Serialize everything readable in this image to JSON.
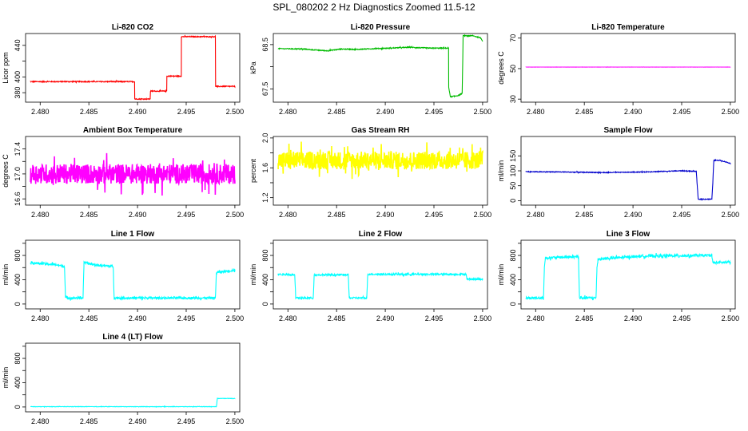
{
  "figure": {
    "title": "SPL_080202  2 Hz Diagnostics Zoomed 11.5-12"
  },
  "chart_data": [
    {
      "type": "line",
      "title": "Li-820 CO2",
      "ylabel": "Licor ppm",
      "color": "#ff0000",
      "xlim": [
        2.4785,
        2.5005
      ],
      "ylim": [
        368,
        455
      ],
      "xticks": [
        "2.480",
        "2.485",
        "2.490",
        "2.495",
        "2.500"
      ],
      "yticks": [
        380,
        400,
        420,
        440
      ],
      "ytick_labels": [
        "380",
        "400",
        "",
        "440"
      ],
      "noise": 0.6,
      "series": [
        {
          "x": [
            2.479,
            2.4897,
            2.4897,
            2.4913,
            2.4913,
            2.493,
            2.493,
            2.4945,
            2.4945,
            2.498,
            2.498,
            2.5
          ],
          "y": [
            394,
            394,
            372,
            372,
            382,
            382,
            401,
            401,
            451,
            451,
            388,
            388
          ]
        }
      ]
    },
    {
      "type": "line",
      "title": "Li-820 Pressure",
      "ylabel": "kPa",
      "color": "#00bb00",
      "xlim": [
        2.4785,
        2.5005
      ],
      "ylim": [
        67.2,
        68.75
      ],
      "xticks": [
        "2.480",
        "2.485",
        "2.490",
        "2.495",
        "2.500"
      ],
      "yticks": [
        67.5,
        68.0,
        68.5
      ],
      "ytick_labels": [
        "67.5",
        "",
        "68.5"
      ],
      "noise": 0.01,
      "series": [
        {
          "x": [
            2.479,
            2.4815,
            2.484,
            2.4855,
            2.487,
            2.489,
            2.4905,
            2.4925,
            2.4945,
            2.4965,
            2.4965,
            2.4967,
            2.4975,
            2.4979,
            2.498,
            2.499,
            2.4998,
            2.5
          ],
          "y": [
            68.41,
            68.4,
            68.36,
            68.4,
            68.39,
            68.41,
            68.42,
            68.44,
            68.42,
            68.42,
            67.55,
            67.32,
            67.35,
            67.4,
            68.7,
            68.7,
            68.65,
            68.58
          ]
        }
      ]
    },
    {
      "type": "line",
      "title": "Li-820 Temperature",
      "ylabel": "degrees C",
      "color": "#ff00ff",
      "xlim": [
        2.4785,
        2.5005
      ],
      "ylim": [
        28,
        73
      ],
      "xticks": [
        "2.480",
        "2.485",
        "2.490",
        "2.495",
        "2.500"
      ],
      "yticks": [
        30,
        50,
        70
      ],
      "ytick_labels": [
        "30",
        "50",
        "70"
      ],
      "noise": 0.05,
      "series": [
        {
          "x": [
            2.479,
            2.5
          ],
          "y": [
            51,
            51
          ]
        }
      ]
    },
    {
      "type": "line",
      "title": "Ambient Box Temperature",
      "ylabel": "degrees C",
      "color": "#ff00ff",
      "xlim": [
        2.4785,
        2.5005
      ],
      "ylim": [
        16.5,
        17.6
      ],
      "xticks": [
        "2.480",
        "2.485",
        "2.490",
        "2.495",
        "2.500"
      ],
      "yticks": [
        16.6,
        16.8,
        17.0,
        17.2,
        17.4
      ],
      "ytick_labels": [
        "16.6",
        "",
        "17.0",
        "",
        "17.4"
      ],
      "noise": 0.16,
      "series": [
        {
          "x": [
            2.479,
            2.5
          ],
          "y": [
            17.0,
            17.0
          ]
        }
      ]
    },
    {
      "type": "line",
      "title": "Gas Stream RH",
      "ylabel": "percent",
      "color": "#ffff00",
      "xlim": [
        2.4785,
        2.5005
      ],
      "ylim": [
        1.1,
        2.02
      ],
      "xticks": [
        "2.480",
        "2.485",
        "2.490",
        "2.495",
        "2.500"
      ],
      "yticks": [
        1.2,
        1.4,
        1.6,
        1.8,
        2.0
      ],
      "ytick_labels": [
        "1.2",
        "",
        "1.6",
        "",
        "2.0"
      ],
      "noise": 0.12,
      "series": [
        {
          "x": [
            2.479,
            2.5
          ],
          "y": [
            1.7,
            1.7
          ]
        }
      ]
    },
    {
      "type": "line",
      "title": "Sample Flow",
      "ylabel": "ml/min",
      "color": "#0000cc",
      "xlim": [
        2.4785,
        2.5005
      ],
      "ylim": [
        -15,
        215
      ],
      "xticks": [
        "2.480",
        "2.485",
        "2.490",
        "2.495",
        "2.500"
      ],
      "yticks": [
        0,
        50,
        100,
        150
      ],
      "ytick_labels": [
        "0",
        "50",
        "100",
        "150"
      ],
      "noise": 1.2,
      "series": [
        {
          "x": [
            2.479,
            2.483,
            2.487,
            2.491,
            2.495,
            2.4965,
            2.4966,
            2.4967,
            2.4981,
            2.4982,
            2.4983,
            2.499,
            2.5
          ],
          "y": [
            97,
            96,
            94,
            96,
            100,
            98,
            50,
            5,
            5,
            60,
            135,
            135,
            125
          ]
        }
      ]
    },
    {
      "type": "line",
      "title": "Line 1 Flow",
      "ylabel": "ml/min",
      "color": "#00ffff",
      "xlim": [
        2.4785,
        2.5005
      ],
      "ylim": [
        -80,
        1050
      ],
      "xticks": [
        "2.480",
        "2.485",
        "2.490",
        "2.495",
        "2.500"
      ],
      "yticks": [
        0,
        200,
        400,
        600,
        800,
        1000
      ],
      "ytick_labels": [
        "0",
        "",
        "400",
        "",
        "800",
        ""
      ],
      "noise": 20,
      "series": [
        {
          "x": [
            2.479,
            2.4815,
            2.4825,
            2.4826,
            2.4844,
            2.4845,
            2.4858,
            2.4875,
            2.4876,
            2.498,
            2.4981,
            2.5
          ],
          "y": [
            680,
            650,
            620,
            100,
            100,
            680,
            640,
            620,
            100,
            100,
            520,
            560
          ]
        }
      ]
    },
    {
      "type": "line",
      "title": "Line 2 Flow",
      "ylabel": "ml/min",
      "color": "#00ffff",
      "xlim": [
        2.4785,
        2.5005
      ],
      "ylim": [
        -80,
        1050
      ],
      "xticks": [
        "2.480",
        "2.485",
        "2.490",
        "2.495",
        "2.500"
      ],
      "yticks": [
        0,
        200,
        400,
        600,
        800,
        1000
      ],
      "ytick_labels": [
        "0",
        "",
        "400",
        "",
        "800",
        ""
      ],
      "noise": 14,
      "series": [
        {
          "x": [
            2.479,
            2.4807,
            2.4808,
            2.4826,
            2.4827,
            2.4862,
            2.4863,
            2.4881,
            2.4882,
            2.4983,
            2.4984,
            2.5
          ],
          "y": [
            490,
            480,
            100,
            100,
            480,
            480,
            100,
            100,
            490,
            490,
            410,
            410
          ]
        }
      ]
    },
    {
      "type": "line",
      "title": "Line 3 Flow",
      "ylabel": "ml/min",
      "color": "#00ffff",
      "xlim": [
        2.4785,
        2.5005
      ],
      "ylim": [
        -80,
        1050
      ],
      "xticks": [
        "2.480",
        "2.485",
        "2.490",
        "2.495",
        "2.500"
      ],
      "yticks": [
        0,
        200,
        400,
        600,
        800,
        1000
      ],
      "ytick_labels": [
        "0",
        "",
        "400",
        "",
        "800",
        ""
      ],
      "noise": 22,
      "series": [
        {
          "x": [
            2.479,
            2.4808,
            2.4809,
            2.481,
            2.4844,
            2.4845,
            2.4862,
            2.4863,
            2.4864,
            2.491,
            2.4981,
            2.4982,
            2.5
          ],
          "y": [
            100,
            100,
            600,
            760,
            780,
            100,
            100,
            600,
            740,
            790,
            800,
            680,
            690
          ]
        }
      ]
    },
    {
      "type": "line",
      "title": "Line 4 (LT) Flow",
      "ylabel": "ml/min",
      "color": "#00ffff",
      "xlim": [
        2.4785,
        2.5005
      ],
      "ylim": [
        -80,
        1050
      ],
      "xticks": [
        "2.480",
        "2.485",
        "2.490",
        "2.495",
        "2.500"
      ],
      "yticks": [
        0,
        200,
        400,
        600,
        800,
        1000
      ],
      "ytick_labels": [
        "0",
        "",
        "400",
        "",
        "800",
        ""
      ],
      "noise": 3,
      "series": [
        {
          "x": [
            2.479,
            2.4981,
            2.4982,
            2.5
          ],
          "y": [
            5,
            5,
            140,
            140
          ]
        }
      ]
    }
  ]
}
